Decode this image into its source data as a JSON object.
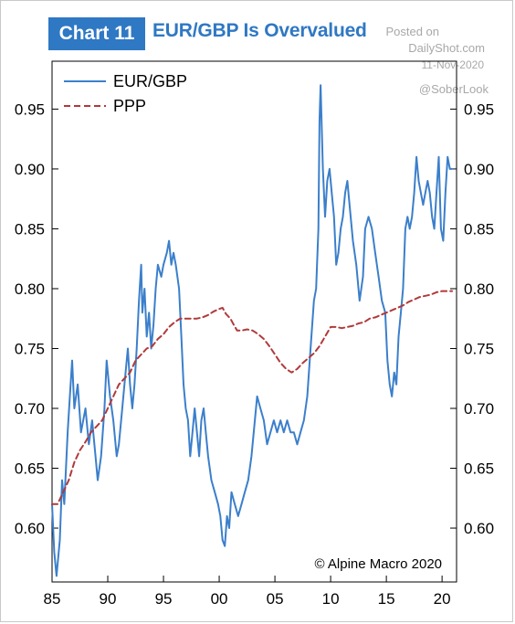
{
  "header": {
    "badge": "Chart 11",
    "title": "EUR/GBP Is Overvalued"
  },
  "watermark": {
    "posted": "Posted on",
    "site": "DailyShot.com",
    "date": "11-Nov-2020",
    "handle": "@SoberLook"
  },
  "source": "© Alpine Macro 2020",
  "colors": {
    "accent": "#2f78c4",
    "eurgbp": "#3b7fcb",
    "ppp": "#b03a3a"
  },
  "chart_data": {
    "type": "line",
    "xlim": [
      1985,
      2021.3
    ],
    "ylim": [
      0.555,
      0.99
    ],
    "x_ticks": [
      {
        "value": 1985,
        "label": "85"
      },
      {
        "value": 1990,
        "label": "90"
      },
      {
        "value": 1995,
        "label": "95"
      },
      {
        "value": 2000,
        "label": "00"
      },
      {
        "value": 2005,
        "label": "05"
      },
      {
        "value": 2010,
        "label": "10"
      },
      {
        "value": 2015,
        "label": "15"
      },
      {
        "value": 2020,
        "label": "20"
      }
    ],
    "y_ticks": [
      {
        "value": 0.6,
        "label": "0.60"
      },
      {
        "value": 0.65,
        "label": "0.65"
      },
      {
        "value": 0.7,
        "label": "0.70"
      },
      {
        "value": 0.75,
        "label": "0.75"
      },
      {
        "value": 0.8,
        "label": "0.80"
      },
      {
        "value": 0.85,
        "label": "0.85"
      },
      {
        "value": 0.9,
        "label": "0.90"
      },
      {
        "value": 0.95,
        "label": "0.95"
      }
    ],
    "legend_position": "top-left",
    "grid": false,
    "series": [
      {
        "name": "EUR/GBP",
        "style": "solid",
        "points": [
          [
            1985.0,
            0.62
          ],
          [
            1985.2,
            0.58
          ],
          [
            1985.4,
            0.56
          ],
          [
            1985.7,
            0.59
          ],
          [
            1985.9,
            0.64
          ],
          [
            1986.1,
            0.62
          ],
          [
            1986.4,
            0.68
          ],
          [
            1986.6,
            0.71
          ],
          [
            1986.8,
            0.74
          ],
          [
            1987.0,
            0.7
          ],
          [
            1987.3,
            0.72
          ],
          [
            1987.6,
            0.68
          ],
          [
            1988.0,
            0.7
          ],
          [
            1988.3,
            0.67
          ],
          [
            1988.6,
            0.69
          ],
          [
            1988.9,
            0.66
          ],
          [
            1989.1,
            0.64
          ],
          [
            1989.4,
            0.66
          ],
          [
            1989.7,
            0.7
          ],
          [
            1989.9,
            0.74
          ],
          [
            1990.2,
            0.71
          ],
          [
            1990.5,
            0.69
          ],
          [
            1990.8,
            0.66
          ],
          [
            1991.0,
            0.67
          ],
          [
            1991.3,
            0.7
          ],
          [
            1991.5,
            0.72
          ],
          [
            1991.8,
            0.75
          ],
          [
            1992.0,
            0.72
          ],
          [
            1992.2,
            0.7
          ],
          [
            1992.4,
            0.72
          ],
          [
            1992.6,
            0.75
          ],
          [
            1992.8,
            0.79
          ],
          [
            1993.0,
            0.82
          ],
          [
            1993.1,
            0.78
          ],
          [
            1993.3,
            0.8
          ],
          [
            1993.5,
            0.76
          ],
          [
            1993.7,
            0.78
          ],
          [
            1993.9,
            0.75
          ],
          [
            1994.1,
            0.77
          ],
          [
            1994.3,
            0.8
          ],
          [
            1994.5,
            0.82
          ],
          [
            1994.8,
            0.81
          ],
          [
            1995.0,
            0.82
          ],
          [
            1995.3,
            0.83
          ],
          [
            1995.5,
            0.84
          ],
          [
            1995.7,
            0.82
          ],
          [
            1995.9,
            0.83
          ],
          [
            1996.1,
            0.82
          ],
          [
            1996.4,
            0.8
          ],
          [
            1996.6,
            0.76
          ],
          [
            1996.8,
            0.72
          ],
          [
            1997.0,
            0.7
          ],
          [
            1997.2,
            0.69
          ],
          [
            1997.4,
            0.66
          ],
          [
            1997.6,
            0.68
          ],
          [
            1997.8,
            0.7
          ],
          [
            1998.0,
            0.68
          ],
          [
            1998.2,
            0.66
          ],
          [
            1998.4,
            0.69
          ],
          [
            1998.6,
            0.7
          ],
          [
            1998.8,
            0.68
          ],
          [
            1999.0,
            0.66
          ],
          [
            1999.3,
            0.64
          ],
          [
            1999.6,
            0.63
          ],
          [
            1999.9,
            0.62
          ],
          [
            2000.1,
            0.61
          ],
          [
            2000.3,
            0.59
          ],
          [
            2000.5,
            0.585
          ],
          [
            2000.7,
            0.61
          ],
          [
            2000.9,
            0.6
          ],
          [
            2001.1,
            0.63
          ],
          [
            2001.4,
            0.62
          ],
          [
            2001.7,
            0.61
          ],
          [
            2002.0,
            0.62
          ],
          [
            2002.3,
            0.63
          ],
          [
            2002.6,
            0.64
          ],
          [
            2002.9,
            0.66
          ],
          [
            2003.2,
            0.69
          ],
          [
            2003.4,
            0.71
          ],
          [
            2003.7,
            0.7
          ],
          [
            2004.0,
            0.69
          ],
          [
            2004.3,
            0.67
          ],
          [
            2004.6,
            0.68
          ],
          [
            2004.9,
            0.69
          ],
          [
            2005.2,
            0.68
          ],
          [
            2005.5,
            0.69
          ],
          [
            2005.8,
            0.68
          ],
          [
            2006.1,
            0.69
          ],
          [
            2006.4,
            0.68
          ],
          [
            2006.7,
            0.68
          ],
          [
            2007.0,
            0.67
          ],
          [
            2007.3,
            0.68
          ],
          [
            2007.6,
            0.69
          ],
          [
            2007.9,
            0.71
          ],
          [
            2008.2,
            0.75
          ],
          [
            2008.5,
            0.79
          ],
          [
            2008.7,
            0.8
          ],
          [
            2008.9,
            0.85
          ],
          [
            2009.0,
            0.94
          ],
          [
            2009.1,
            0.97
          ],
          [
            2009.3,
            0.9
          ],
          [
            2009.5,
            0.86
          ],
          [
            2009.7,
            0.89
          ],
          [
            2009.9,
            0.9
          ],
          [
            2010.1,
            0.88
          ],
          [
            2010.3,
            0.86
          ],
          [
            2010.5,
            0.82
          ],
          [
            2010.7,
            0.83
          ],
          [
            2010.9,
            0.85
          ],
          [
            2011.1,
            0.86
          ],
          [
            2011.3,
            0.88
          ],
          [
            2011.5,
            0.89
          ],
          [
            2011.7,
            0.87
          ],
          [
            2012.0,
            0.84
          ],
          [
            2012.3,
            0.82
          ],
          [
            2012.6,
            0.79
          ],
          [
            2012.9,
            0.81
          ],
          [
            2013.1,
            0.85
          ],
          [
            2013.4,
            0.86
          ],
          [
            2013.7,
            0.85
          ],
          [
            2014.0,
            0.83
          ],
          [
            2014.3,
            0.81
          ],
          [
            2014.6,
            0.79
          ],
          [
            2014.9,
            0.78
          ],
          [
            2015.1,
            0.74
          ],
          [
            2015.3,
            0.72
          ],
          [
            2015.5,
            0.71
          ],
          [
            2015.7,
            0.73
          ],
          [
            2015.9,
            0.72
          ],
          [
            2016.1,
            0.76
          ],
          [
            2016.3,
            0.78
          ],
          [
            2016.5,
            0.8
          ],
          [
            2016.7,
            0.85
          ],
          [
            2016.9,
            0.86
          ],
          [
            2017.1,
            0.85
          ],
          [
            2017.3,
            0.86
          ],
          [
            2017.5,
            0.88
          ],
          [
            2017.7,
            0.91
          ],
          [
            2017.9,
            0.89
          ],
          [
            2018.1,
            0.88
          ],
          [
            2018.3,
            0.87
          ],
          [
            2018.5,
            0.88
          ],
          [
            2018.7,
            0.89
          ],
          [
            2018.9,
            0.88
          ],
          [
            2019.1,
            0.86
          ],
          [
            2019.3,
            0.85
          ],
          [
            2019.5,
            0.88
          ],
          [
            2019.7,
            0.91
          ],
          [
            2019.9,
            0.85
          ],
          [
            2020.1,
            0.84
          ],
          [
            2020.3,
            0.88
          ],
          [
            2020.5,
            0.91
          ],
          [
            2020.7,
            0.9
          ],
          [
            2020.9,
            0.9
          ]
        ]
      },
      {
        "name": "PPP",
        "style": "dashed",
        "points": [
          [
            1985.0,
            0.62
          ],
          [
            1985.5,
            0.62
          ],
          [
            1986.0,
            0.63
          ],
          [
            1986.5,
            0.64
          ],
          [
            1987.0,
            0.655
          ],
          [
            1987.5,
            0.665
          ],
          [
            1988.0,
            0.672
          ],
          [
            1988.5,
            0.68
          ],
          [
            1989.0,
            0.685
          ],
          [
            1989.5,
            0.69
          ],
          [
            1990.0,
            0.7
          ],
          [
            1990.5,
            0.71
          ],
          [
            1991.0,
            0.72
          ],
          [
            1991.5,
            0.725
          ],
          [
            1992.0,
            0.73
          ],
          [
            1992.5,
            0.74
          ],
          [
            1993.0,
            0.745
          ],
          [
            1993.5,
            0.75
          ],
          [
            1994.0,
            0.752
          ],
          [
            1994.5,
            0.758
          ],
          [
            1995.0,
            0.762
          ],
          [
            1995.5,
            0.768
          ],
          [
            1996.0,
            0.772
          ],
          [
            1996.5,
            0.775
          ],
          [
            1997.0,
            0.775
          ],
          [
            1997.5,
            0.775
          ],
          [
            1998.0,
            0.775
          ],
          [
            1998.5,
            0.776
          ],
          [
            1999.0,
            0.778
          ],
          [
            1999.5,
            0.781
          ],
          [
            2000.0,
            0.783
          ],
          [
            2000.3,
            0.784
          ],
          [
            2000.6,
            0.779
          ],
          [
            2001.0,
            0.775
          ],
          [
            2001.3,
            0.77
          ],
          [
            2001.6,
            0.765
          ],
          [
            2002.0,
            0.765
          ],
          [
            2002.5,
            0.766
          ],
          [
            2003.0,
            0.765
          ],
          [
            2003.5,
            0.762
          ],
          [
            2004.0,
            0.758
          ],
          [
            2004.5,
            0.752
          ],
          [
            2005.0,
            0.745
          ],
          [
            2005.5,
            0.738
          ],
          [
            2006.0,
            0.733
          ],
          [
            2006.5,
            0.73
          ],
          [
            2007.0,
            0.733
          ],
          [
            2007.5,
            0.738
          ],
          [
            2008.0,
            0.742
          ],
          [
            2008.5,
            0.746
          ],
          [
            2009.0,
            0.752
          ],
          [
            2009.5,
            0.76
          ],
          [
            2010.0,
            0.768
          ],
          [
            2010.5,
            0.768
          ],
          [
            2011.0,
            0.767
          ],
          [
            2011.5,
            0.768
          ],
          [
            2012.0,
            0.769
          ],
          [
            2012.5,
            0.771
          ],
          [
            2013.0,
            0.772
          ],
          [
            2013.5,
            0.775
          ],
          [
            2014.0,
            0.776
          ],
          [
            2014.5,
            0.778
          ],
          [
            2015.0,
            0.78
          ],
          [
            2015.5,
            0.782
          ],
          [
            2016.0,
            0.784
          ],
          [
            2016.5,
            0.786
          ],
          [
            2017.0,
            0.789
          ],
          [
            2017.5,
            0.791
          ],
          [
            2018.0,
            0.793
          ],
          [
            2018.5,
            0.794
          ],
          [
            2019.0,
            0.795
          ],
          [
            2019.5,
            0.797
          ],
          [
            2020.0,
            0.798
          ],
          [
            2020.5,
            0.798
          ],
          [
            2020.9,
            0.798
          ]
        ]
      }
    ]
  }
}
